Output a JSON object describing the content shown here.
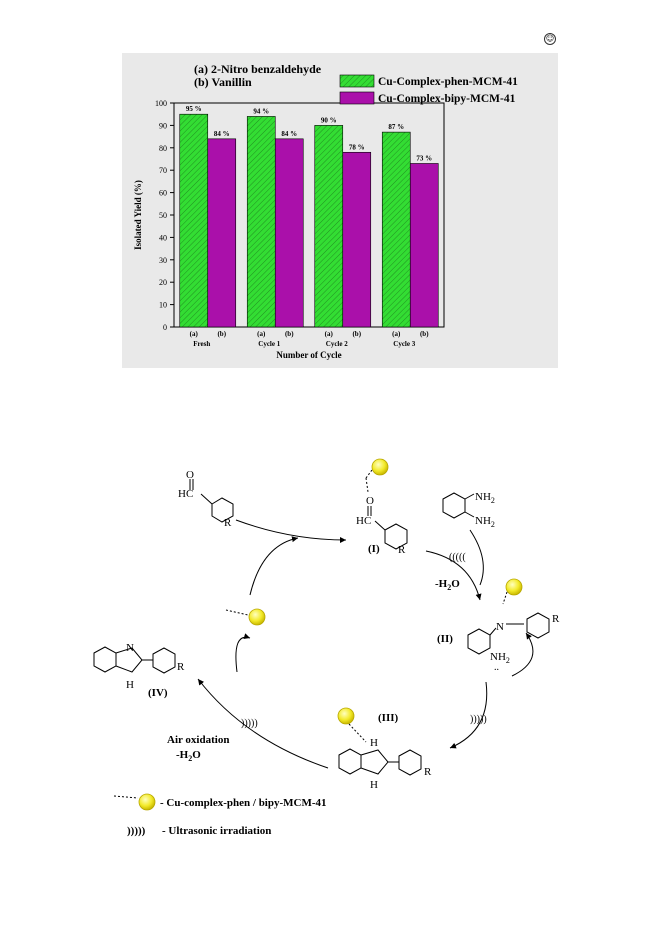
{
  "corner_mark": "☺",
  "chart_data": {
    "type": "bar",
    "title_lines": [
      "(a) 2-Nitro benzaldehyde",
      "(b) Vanillin"
    ],
    "xlabel": "Number of Cycle",
    "ylabel": "Isolated Yield (%)",
    "ylim": [
      0,
      100
    ],
    "yticks": [
      0,
      10,
      20,
      30,
      40,
      50,
      60,
      70,
      80,
      90,
      100
    ],
    "categories": [
      "Fresh",
      "Cycle 1",
      "Cycle 2",
      "Cycle 3"
    ],
    "sub_labels": [
      "(a)",
      "(b)"
    ],
    "legend_position": "top-right",
    "series": [
      {
        "name": "Cu-Complex-phen-MCM-41",
        "values": [
          95,
          94,
          90,
          87
        ],
        "color": "#33dd33"
      },
      {
        "name": "Cu-Complex-bipy-MCM-41",
        "values": [
          84,
          84,
          78,
          73
        ],
        "color": "#aa10aa"
      }
    ],
    "data_labels": [
      [
        "95 %",
        "94 %",
        "90 %",
        "87 %"
      ],
      [
        "84 %",
        "84 %",
        "78 %",
        "73 %"
      ]
    ]
  },
  "scheme": {
    "aldehyde_group": "HC",
    "oxygen": "O",
    "r_group": "R",
    "label_I": "(I)",
    "label_II": "(II)",
    "label_III": "(III)",
    "label_IV": "(IV)",
    "nitrogen": "N",
    "nh": "H",
    "ultrasound_1": "(((((",
    "ultrasound_2": ")))))",
    "ultrasound_3": ")))))",
    "water_loss": "-H2O",
    "air_oxidation": "Air oxidation",
    "water_loss_2": "-H2O",
    "nh2_top": "NH2",
    "nh2_bottom": "NH2",
    "nh2_II": "NH2",
    "lone_pair": "..",
    "legend_catalyst": "- Cu-complex-phen / bipy-MCM-41",
    "legend_ultrasound_symbol": ")))))",
    "legend_ultrasound": "- Ultrasonic irradiation"
  }
}
